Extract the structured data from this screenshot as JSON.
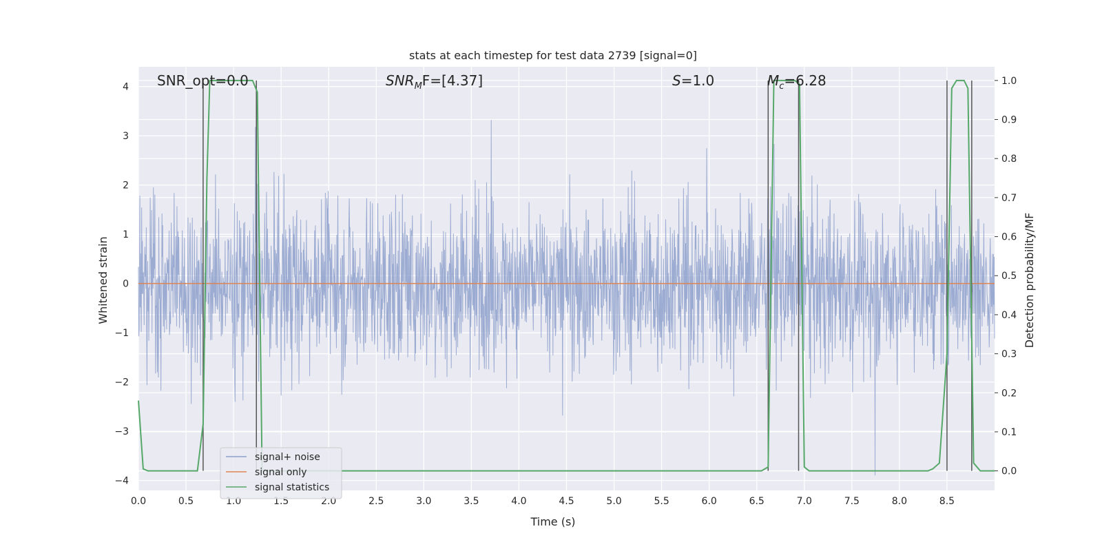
{
  "chart_data": {
    "type": "line",
    "title": "stats at each timestep for test data 2739 [signal=0]",
    "xlabel": "Time (s)",
    "ylabel": "Whitened strain",
    "y2label": "Detection probability/MF",
    "xlim": [
      0.0,
      9.0
    ],
    "ylim": [
      -4.2,
      4.4
    ],
    "y2lim": [
      -0.05,
      1.035
    ],
    "x_ticks": [
      "0.0",
      "0.5",
      "1.0",
      "1.5",
      "2.0",
      "2.5",
      "3.0",
      "3.5",
      "4.0",
      "4.5",
      "5.0",
      "5.5",
      "6.0",
      "6.5",
      "7.0",
      "7.5",
      "8.0",
      "8.5"
    ],
    "y_ticks": [
      "4",
      "3",
      "2",
      "1",
      "0",
      "−1",
      "−2",
      "−3",
      "−4"
    ],
    "y2_ticks": [
      "1.0",
      "0.9",
      "0.8",
      "0.7",
      "0.6",
      "0.5",
      "0.4",
      "0.3",
      "0.2",
      "0.1",
      "0.0"
    ],
    "grid": true,
    "legend_position": "lower-left",
    "annotations": {
      "snr_opt": "SNR_opt=0.0",
      "snr_mf_main": "SNR",
      "snr_mf_sub": "M",
      "snr_mf_rest": "F=[4.37]",
      "s_italic": "S",
      "s_rest": "=1.0",
      "mc_italic": "M",
      "mc_sub": "c",
      "mc_rest": "=6.28"
    },
    "series": [
      {
        "name": "signal+ noise",
        "color": "#8da0cb",
        "note_style": "dense random noise roughly within ±2 with spikes to ±4",
        "amplitude_typical": 1.8,
        "amplitude_max": 4.0
      },
      {
        "name": "signal only",
        "color": "#dd8452",
        "x": [
          0.0,
          9.0
        ],
        "y": [
          0.0,
          0.0
        ]
      },
      {
        "name": "signal statistics",
        "color": "#55a868",
        "axis": "right",
        "x": [
          0.0,
          0.05,
          0.1,
          0.62,
          0.68,
          0.72,
          0.75,
          1.2,
          1.25,
          1.3,
          1.35,
          6.55,
          6.62,
          6.68,
          6.9,
          6.95,
          7.0,
          7.05,
          8.3,
          8.35,
          8.42,
          8.5,
          8.55,
          8.6,
          8.68,
          8.72,
          8.78,
          8.85,
          8.9,
          9.0
        ],
        "y": [
          0.18,
          0.005,
          0.0,
          0.0,
          0.12,
          0.75,
          1.0,
          1.0,
          0.97,
          0.0,
          0.0,
          0.0,
          0.01,
          1.0,
          1.0,
          0.99,
          0.01,
          0.0,
          0.0,
          0.005,
          0.02,
          0.3,
          0.98,
          1.0,
          1.0,
          0.98,
          0.02,
          0.0,
          0.0,
          0.0
        ]
      }
    ],
    "vlines_x": [
      0.68,
      1.24,
      6.62,
      6.94,
      8.5,
      8.76
    ],
    "vline_color": "#555555"
  }
}
